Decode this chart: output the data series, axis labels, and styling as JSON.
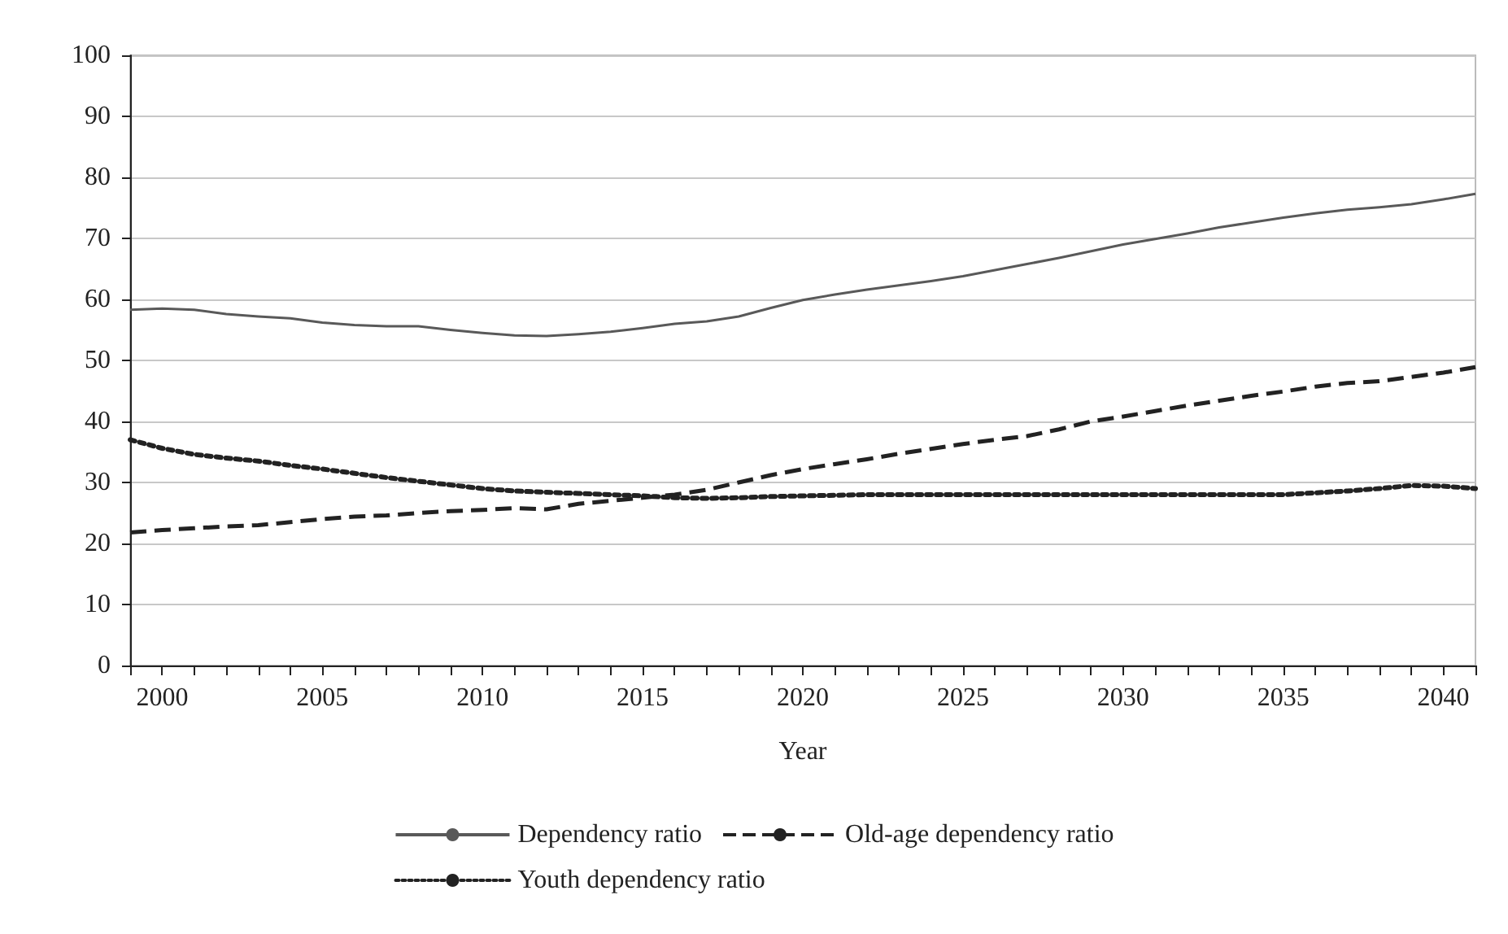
{
  "chart_data": {
    "type": "line",
    "xlabel": "Year",
    "x": [
      1999,
      2000,
      2001,
      2002,
      2003,
      2004,
      2005,
      2006,
      2007,
      2008,
      2009,
      2010,
      2011,
      2012,
      2013,
      2014,
      2015,
      2016,
      2017,
      2018,
      2019,
      2020,
      2021,
      2022,
      2023,
      2024,
      2025,
      2026,
      2027,
      2028,
      2029,
      2030,
      2031,
      2032,
      2033,
      2034,
      2035,
      2036,
      2037,
      2038,
      2039,
      2040,
      2041
    ],
    "series": [
      {
        "name": "Dependency ratio",
        "color": "#595959",
        "line_style": "solid",
        "values": [
          58.3,
          58.5,
          58.3,
          57.6,
          57.2,
          56.9,
          56.2,
          55.8,
          55.6,
          55.6,
          55.0,
          54.5,
          54.1,
          54.0,
          54.3,
          54.7,
          55.3,
          56.0,
          56.4,
          57.2,
          58.6,
          59.9,
          60.8,
          61.6,
          62.3,
          63.0,
          63.8,
          64.8,
          65.8,
          66.8,
          67.9,
          69.0,
          69.9,
          70.8,
          71.8,
          72.6,
          73.4,
          74.1,
          74.7,
          75.1,
          75.6,
          76.4,
          77.3
        ]
      },
      {
        "name": "Old-age dependency ratio",
        "color": "#222222",
        "line_style": "dashed",
        "values": [
          21.8,
          22.2,
          22.5,
          22.8,
          23.0,
          23.5,
          24.0,
          24.4,
          24.6,
          25.0,
          25.3,
          25.5,
          25.8,
          25.6,
          26.5,
          27.0,
          27.5,
          28.0,
          28.8,
          30.0,
          31.2,
          32.2,
          33.0,
          33.8,
          34.7,
          35.5,
          36.3,
          37.0,
          37.6,
          38.7,
          40.0,
          40.8,
          41.7,
          42.6,
          43.4,
          44.2,
          44.9,
          45.7,
          46.3,
          46.6,
          47.3,
          48.0,
          48.9
        ]
      },
      {
        "name": "Youth dependency ratio",
        "color": "#222222",
        "line_style": "dotted",
        "values": [
          37.0,
          35.6,
          34.6,
          34.0,
          33.5,
          32.8,
          32.2,
          31.5,
          30.8,
          30.2,
          29.6,
          29.0,
          28.6,
          28.4,
          28.2,
          28.0,
          27.8,
          27.5,
          27.4,
          27.5,
          27.7,
          27.8,
          27.9,
          28.0,
          28.0,
          28.0,
          28.0,
          28.0,
          28.0,
          28.0,
          28.0,
          28.0,
          28.0,
          28.0,
          28.0,
          28.0,
          28.0,
          28.3,
          28.6,
          29.0,
          29.5,
          29.4,
          29.0
        ]
      }
    ],
    "xlim": [
      1999,
      2041
    ],
    "xticks": [
      {
        "value": 1999,
        "label": null
      },
      2000,
      {
        "value": 2001,
        "label": null
      },
      {
        "value": 2002,
        "label": null
      },
      {
        "value": 2003,
        "label": null
      },
      {
        "value": 2004,
        "label": null
      },
      2005,
      {
        "value": 2006,
        "label": null
      },
      {
        "value": 2007,
        "label": null
      },
      {
        "value": 2008,
        "label": null
      },
      {
        "value": 2009,
        "label": null
      },
      2010,
      {
        "value": 2011,
        "label": null
      },
      {
        "value": 2012,
        "label": null
      },
      {
        "value": 2013,
        "label": null
      },
      {
        "value": 2014,
        "label": null
      },
      2015,
      {
        "value": 2016,
        "label": null
      },
      {
        "value": 2017,
        "label": null
      },
      {
        "value": 2018,
        "label": null
      },
      {
        "value": 2019,
        "label": null
      },
      2020,
      {
        "value": 2021,
        "label": null
      },
      {
        "value": 2022,
        "label": null
      },
      {
        "value": 2023,
        "label": null
      },
      {
        "value": 2024,
        "label": null
      },
      2025,
      {
        "value": 2026,
        "label": null
      },
      {
        "value": 2027,
        "label": null
      },
      {
        "value": 2028,
        "label": null
      },
      {
        "value": 2029,
        "label": null
      },
      2030,
      {
        "value": 2031,
        "label": null
      },
      {
        "value": 2032,
        "label": null
      },
      {
        "value": 2033,
        "label": null
      },
      {
        "value": 2034,
        "label": null
      },
      2035,
      {
        "value": 2036,
        "label": null
      },
      {
        "value": 2037,
        "label": null
      },
      {
        "value": 2038,
        "label": null
      },
      {
        "value": 2039,
        "label": null
      },
      2040,
      {
        "value": 2041,
        "label": null
      }
    ],
    "ylim": [
      0,
      100
    ],
    "yticks": [
      0,
      10,
      20,
      30,
      40,
      50,
      60,
      70,
      80,
      90,
      100
    ],
    "grid": "y",
    "legend": "bottom",
    "marker": "none"
  }
}
